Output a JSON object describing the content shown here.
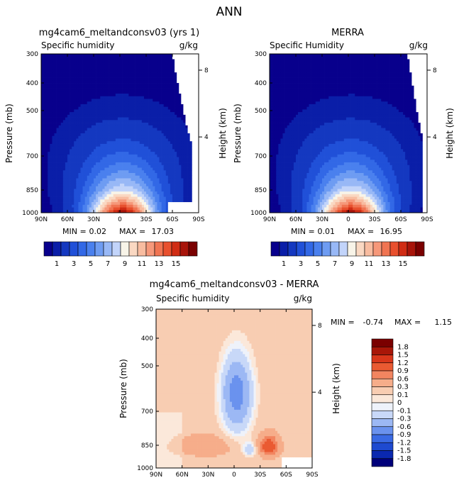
{
  "page_title": "ANN",
  "colors": {
    "base_palette": [
      "#08008c",
      "#0a1ea8",
      "#1438c0",
      "#2050d8",
      "#3268e6",
      "#4a80ee",
      "#6e9cf2",
      "#98b8f6",
      "#c2d4fa",
      "#f8f4e8",
      "#fad8c2",
      "#f8bca0",
      "#f6987a",
      "#f07452",
      "#e8502e",
      "#d02c14",
      "#a8140a",
      "#7a0000"
    ],
    "diff_palette": [
      "#00007a",
      "#0a28b0",
      "#1e4ad0",
      "#3a6ae4",
      "#6a92ee",
      "#9cb8f4",
      "#c8d8f8",
      "#eef2fa",
      "#fbe8da",
      "#f8cdb2",
      "#f6ad8a",
      "#f28560",
      "#ea5a32",
      "#d8361a",
      "#a81608",
      "#7a0000"
    ]
  },
  "chart_data": [
    {
      "type": "heatmap",
      "title": "mg4cam6_meltandconsv03 (yrs 1)",
      "subtitle_left": "Specific humidity",
      "subtitle_right": "g/kg",
      "ylabel": "Pressure (mb)",
      "ylabel_right": "Height (km)",
      "xticks": [
        "90N",
        "60N",
        "30N",
        "0",
        "30S",
        "60S",
        "90S"
      ],
      "yticks": [
        "300",
        "400",
        "500",
        "700",
        "850",
        "1000"
      ],
      "yticks_right": [
        "8",
        "4"
      ],
      "xlim": [
        90,
        -90
      ],
      "ylim": [
        1000,
        300
      ],
      "min": 0.02,
      "max": 17.03,
      "stats": {
        "min_label": "MIN =",
        "min_value": "0.02",
        "max_label": "MAX =",
        "max_value": "17.03"
      },
      "levels": [
        1,
        3,
        5,
        7,
        9,
        11,
        13,
        15
      ],
      "colorbar_labels": [
        "1",
        "3",
        "5",
        "7",
        "9",
        "11",
        "13",
        "15"
      ]
    },
    {
      "type": "heatmap",
      "title": "MERRA",
      "subtitle_left": "Specific Humidity",
      "subtitle_right": "g/kg",
      "ylabel": "Pressure (mb)",
      "ylabel_right": "Height (km)",
      "xticks": [
        "90N",
        "60N",
        "30N",
        "0",
        "30S",
        "60S",
        "90S"
      ],
      "yticks": [
        "300",
        "400",
        "500",
        "700",
        "850",
        "1000"
      ],
      "yticks_right": [
        "8",
        "4"
      ],
      "xlim": [
        90,
        -90
      ],
      "ylim": [
        1000,
        300
      ],
      "min": 0.01,
      "max": 16.95,
      "stats": {
        "min_label": "MIN =",
        "min_value": "0.01",
        "max_label": "MAX =",
        "max_value": "16.95"
      },
      "levels": [
        1,
        3,
        5,
        7,
        9,
        11,
        13,
        15
      ],
      "colorbar_labels": [
        "1",
        "3",
        "5",
        "7",
        "9",
        "11",
        "13",
        "15"
      ]
    },
    {
      "type": "heatmap",
      "title": "mg4cam6_meltandconsv03 - MERRA",
      "subtitle_left": "Specific humidity",
      "subtitle_right": "g/kg",
      "ylabel": "Pressure (mb)",
      "ylabel_right": "Height (km)",
      "xticks": [
        "90N",
        "60N",
        "30N",
        "0",
        "30S",
        "60S",
        "90S"
      ],
      "yticks": [
        "300",
        "400",
        "500",
        "700",
        "850",
        "1000"
      ],
      "yticks_right": [
        "8",
        "4"
      ],
      "xlim": [
        90,
        -90
      ],
      "ylim": [
        1000,
        300
      ],
      "min": -0.74,
      "max": 1.15,
      "stats": {
        "min_label": "MIN =",
        "min_value": "-0.74",
        "max_label": "MAX =",
        "max_value": "1.15"
      },
      "colorbar_labels": [
        "1.8",
        "1.5",
        "1.2",
        "0.9",
        "0.6",
        "0.3",
        "0.1",
        "0",
        "-0.1",
        "-0.3",
        "-0.6",
        "-0.9",
        "-1.2",
        "-1.5",
        "-1.8"
      ]
    }
  ]
}
